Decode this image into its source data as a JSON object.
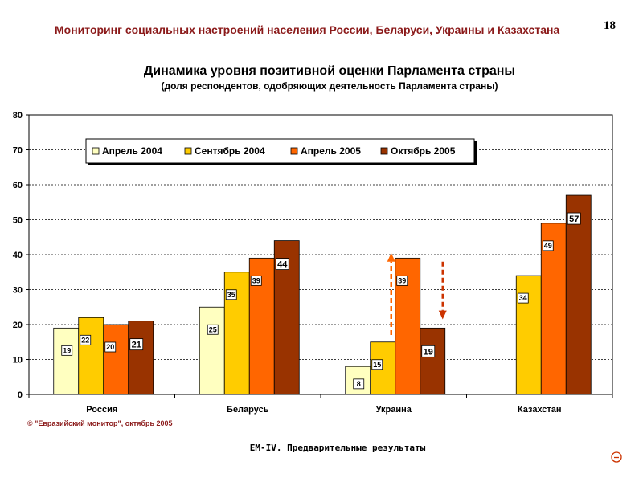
{
  "header": {
    "title": "Мониторинг социальных настроений населения России, Беларуси, Украины и Казахстана",
    "page_number": "18"
  },
  "chart_data": {
    "type": "bar",
    "title": "Динамика уровня позитивной оценки Парламента  страны",
    "subtitle": "(доля респондентов, одобряющих деятельность Парламента страны)",
    "categories": [
      "Россия",
      "Беларусь",
      "Украина",
      "Казахстан"
    ],
    "series": [
      {
        "name": "Апрель 2004",
        "color": "#ffffc0",
        "values": [
          19,
          25,
          8,
          null
        ]
      },
      {
        "name": "Сентябрь 2004",
        "color": "#ffcc00",
        "values": [
          22,
          35,
          15,
          34
        ]
      },
      {
        "name": "Апрель 2005",
        "color": "#ff6600",
        "values": [
          20,
          39,
          39,
          49
        ]
      },
      {
        "name": "Октябрь 2005",
        "color": "#993300",
        "values": [
          21,
          44,
          19,
          57
        ]
      }
    ],
    "ylim": [
      0,
      80
    ],
    "yticks": [
      0,
      10,
      20,
      30,
      40,
      50,
      60,
      70,
      80
    ],
    "grid": true,
    "legend": "top",
    "annotations": [
      {
        "type": "arrow",
        "direction": "up",
        "category": "Украина",
        "color": "#ff6600"
      },
      {
        "type": "arrow",
        "direction": "down",
        "category": "Украина",
        "color": "#cc3300"
      }
    ]
  },
  "footer": {
    "copyright": "© \"Евразийский монитор\", октябрь 2005",
    "note": "EM-IV. Предварительные результаты"
  },
  "icons": {
    "nav": "circle-minus-icon"
  }
}
